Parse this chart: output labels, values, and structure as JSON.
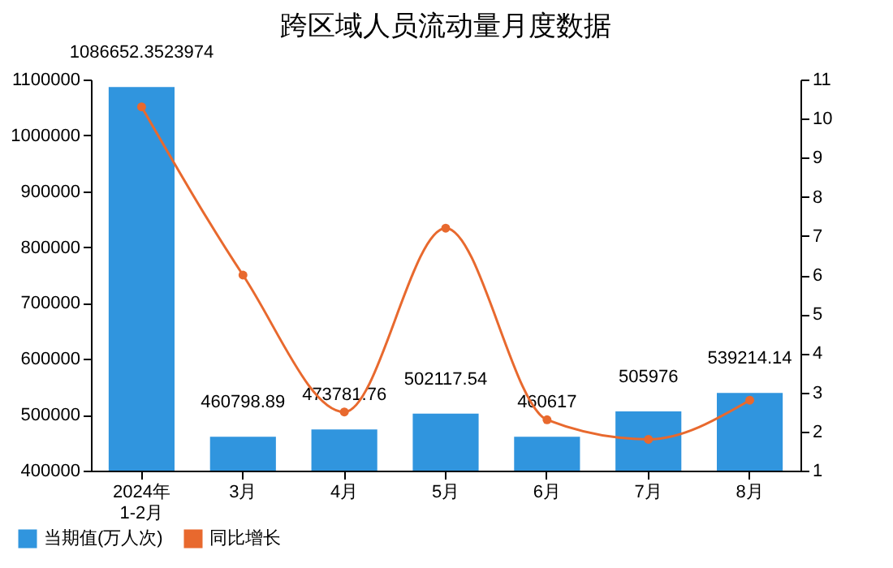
{
  "chart_data": {
    "type": "bar",
    "title": "跨区域人员流动量月度数据",
    "categories": [
      "2024年\n1-2月",
      "3月",
      "4月",
      "5月",
      "6月",
      "7月",
      "8月"
    ],
    "series": [
      {
        "name": "当期值(万人次)",
        "color": "#3095de",
        "values": [
          1086652.3523974,
          460798.89,
          473781.76,
          502117.54,
          460617,
          505976,
          539214.14
        ],
        "value_labels": [
          "1086652.3523974",
          "460798.89",
          "473781.76",
          "502117.54",
          "460617",
          "505976",
          "539214.14"
        ]
      },
      {
        "name": "同比增长",
        "type": "line",
        "axis": "y2",
        "color": "#e8692e",
        "values": [
          10.3,
          6.0,
          2.5,
          7.2,
          2.3,
          1.8,
          2.8
        ]
      }
    ],
    "ylim": [
      400000,
      1100000
    ],
    "yticks": [
      400000,
      500000,
      600000,
      700000,
      800000,
      900000,
      1000000,
      1100000
    ],
    "y2lim": [
      1,
      11
    ],
    "y2ticks": [
      1,
      2,
      3,
      4,
      5,
      6,
      7,
      8,
      9,
      10,
      11
    ],
    "marker": "circle",
    "legend": "bottom left"
  }
}
